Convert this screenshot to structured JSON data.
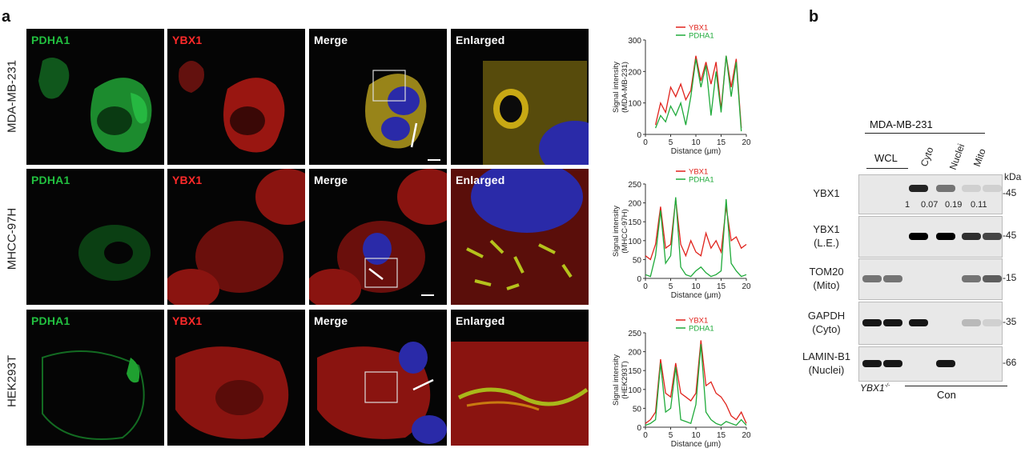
{
  "figure": {
    "panel_a": "a",
    "panel_b": "b"
  },
  "panel_a": {
    "rows": [
      {
        "cell_line": "MDA-MB-231"
      },
      {
        "cell_line": "MHCC-97H"
      },
      {
        "cell_line": "HEK293T"
      }
    ],
    "columns": {
      "pdha1": "PDHA1",
      "ybx1": "YBX1",
      "merge": "Merge",
      "enlarged": "Enlarged"
    },
    "colors": {
      "pdha1": "#1faa3a",
      "ybx1": "#e0231c",
      "merge_nucleus": "#2a2aa8",
      "text_green": "#22c040",
      "text_red": "#ff2a2a",
      "text_white": "#ffffff"
    }
  },
  "chart_data": [
    {
      "type": "line",
      "ylabel": "Signal intensity (MDA-MB-231)",
      "xlabel": "Distance (μm)",
      "xlim": [
        0,
        20
      ],
      "ylim": [
        0,
        300
      ],
      "xticks": [
        "0",
        "5",
        "10",
        "15",
        "20"
      ],
      "yticks": [
        "0",
        "100",
        "200",
        "300"
      ],
      "series": [
        {
          "name": "YBX1",
          "color": "#e0231c",
          "x": [
            2,
            3,
            4,
            5,
            6,
            7,
            8,
            9,
            10,
            11,
            12,
            13,
            14,
            15,
            16,
            17,
            18,
            19
          ],
          "values": [
            30,
            100,
            70,
            150,
            120,
            160,
            110,
            140,
            250,
            170,
            230,
            160,
            230,
            80,
            250,
            150,
            240,
            20
          ]
        },
        {
          "name": "PDHA1",
          "color": "#1faa3a",
          "x": [
            2,
            3,
            4,
            5,
            6,
            7,
            8,
            9,
            10,
            11,
            12,
            13,
            14,
            15,
            16,
            17,
            18,
            19
          ],
          "values": [
            20,
            60,
            40,
            90,
            60,
            100,
            30,
            120,
            240,
            150,
            220,
            60,
            200,
            70,
            250,
            120,
            230,
            10
          ]
        }
      ],
      "legend": "top"
    },
    {
      "type": "line",
      "ylabel": "Signal intensity (MHCC-97H)",
      "xlabel": "Distance (μm)",
      "xlim": [
        0,
        20
      ],
      "ylim": [
        0,
        250
      ],
      "xticks": [
        "0",
        "5",
        "10",
        "15",
        "20"
      ],
      "yticks": [
        "0",
        "50",
        "100",
        "150",
        "200",
        "250"
      ],
      "series": [
        {
          "name": "YBX1",
          "color": "#e0231c",
          "x": [
            0,
            1,
            2,
            3,
            4,
            5,
            6,
            7,
            8,
            9,
            10,
            11,
            12,
            13,
            14,
            15,
            16,
            17,
            18,
            19,
            20
          ],
          "values": [
            60,
            50,
            90,
            190,
            80,
            90,
            210,
            90,
            60,
            100,
            70,
            60,
            120,
            80,
            100,
            70,
            190,
            100,
            110,
            80,
            90
          ]
        },
        {
          "name": "PDHA1",
          "color": "#1faa3a",
          "x": [
            0,
            1,
            2,
            3,
            4,
            5,
            6,
            7,
            8,
            9,
            10,
            11,
            12,
            13,
            14,
            15,
            16,
            17,
            18,
            19,
            20
          ],
          "values": [
            10,
            5,
            60,
            180,
            40,
            60,
            215,
            30,
            10,
            5,
            20,
            30,
            15,
            5,
            10,
            20,
            210,
            40,
            20,
            5,
            10
          ]
        }
      ],
      "legend": "top"
    },
    {
      "type": "line",
      "ylabel": "Signal intensity (HEK293T)",
      "xlabel": "Distance (μm)",
      "xlim": [
        0,
        20
      ],
      "ylim": [
        0,
        250
      ],
      "xticks": [
        "0",
        "5",
        "10",
        "15",
        "20"
      ],
      "yticks": [
        "0",
        "50",
        "100",
        "150",
        "200",
        "250"
      ],
      "series": [
        {
          "name": "YBX1",
          "color": "#e0231c",
          "x": [
            0,
            1,
            2,
            3,
            4,
            5,
            6,
            7,
            8,
            9,
            10,
            11,
            12,
            13,
            14,
            15,
            16,
            17,
            18,
            19,
            20
          ],
          "values": [
            10,
            20,
            40,
            180,
            90,
            80,
            170,
            90,
            80,
            70,
            90,
            230,
            110,
            120,
            90,
            80,
            60,
            30,
            20,
            40,
            10
          ]
        },
        {
          "name": "PDHA1",
          "color": "#1faa3a",
          "x": [
            0,
            1,
            2,
            3,
            4,
            5,
            6,
            7,
            8,
            9,
            10,
            11,
            12,
            13,
            14,
            15,
            16,
            17,
            18,
            19,
            20
          ],
          "values": [
            5,
            10,
            20,
            170,
            40,
            50,
            160,
            20,
            15,
            10,
            60,
            220,
            40,
            20,
            10,
            5,
            15,
            10,
            5,
            20,
            5
          ]
        }
      ],
      "legend": "top"
    }
  ],
  "panel_b": {
    "group_label": "MDA-MB-231",
    "lanes": [
      "WCL",
      "Cyto",
      "Nuclei",
      "Mito"
    ],
    "kda_header": "kDa",
    "rows": [
      {
        "label": "YBX1",
        "kda": "-45",
        "band_intensity": [
          0,
          0,
          0.85,
          0.5,
          0.1,
          0.1
        ]
      },
      {
        "label": "YBX1\n(L.E.)",
        "kda": "-45",
        "band_intensity": [
          0,
          0,
          1,
          1,
          0.8,
          0.7
        ]
      },
      {
        "label": "TOM20\n(Mito)",
        "kda": "-15",
        "band_intensity": [
          0.5,
          0.5,
          0,
          0,
          0.5,
          0.6
        ]
      },
      {
        "label": "GAPDH\n(Cyto)",
        "kda": "-35",
        "band_intensity": [
          0.9,
          0.9,
          0.9,
          0,
          0.2,
          0.1
        ]
      },
      {
        "label": "LAMIN-B1\n(Nuclei)",
        "kda": "-66",
        "band_intensity": [
          0.9,
          0.9,
          0,
          0.9,
          0,
          0
        ]
      }
    ],
    "quant_values": [
      "1",
      "0.07",
      "0.19",
      "0.11"
    ],
    "bottom_left": "YBX1",
    "bottom_left_sup": "-/-",
    "bottom_right": "Con"
  }
}
